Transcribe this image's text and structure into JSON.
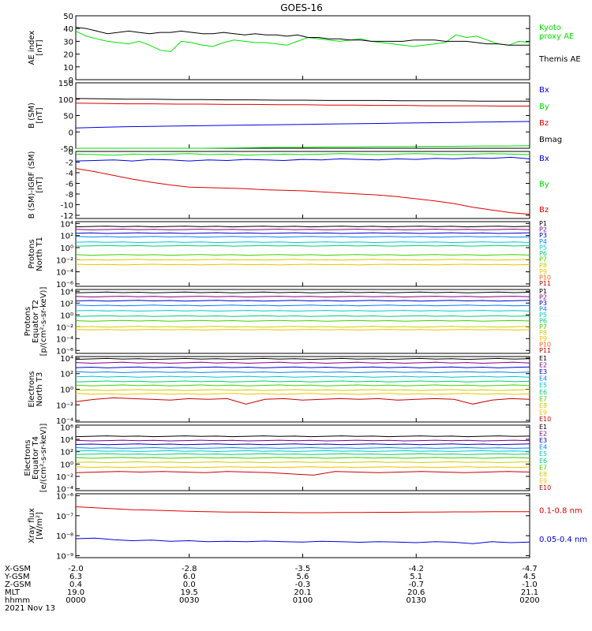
{
  "title": "GOES-16",
  "colors": {
    "black": "#000000",
    "green": "#00e000",
    "red": "#e00000",
    "blue": "#0000e0",
    "P1": "#000000",
    "P2": "#7f007f",
    "P3": "#0000c8",
    "P4": "#0080ff",
    "P5": "#00c8c8",
    "P6": "#00d070",
    "P7": "#40d000",
    "P8": "#c8d000",
    "P9": "#f0c000",
    "P10": "#ff6000",
    "P11": "#c80000"
  },
  "chart_data": [
    {
      "type": "line",
      "id": "ae",
      "ylabel": "AE index\n[nT]",
      "ylim": [
        0,
        50
      ],
      "yticks": [
        "0",
        "10",
        "20",
        "30",
        "40",
        "50"
      ],
      "yvals": [
        0,
        10,
        20,
        30,
        40,
        50
      ],
      "series": [
        {
          "name": "Kyoto\nproxy AE",
          "color": "green",
          "values": [
            38,
            34,
            32,
            30,
            29,
            28,
            30,
            27,
            23,
            22,
            30,
            29,
            27,
            26,
            29,
            31,
            30,
            29,
            29,
            28,
            27,
            30,
            33,
            32,
            31,
            30,
            31,
            32,
            30,
            29,
            28,
            27,
            26,
            27,
            28,
            29,
            35,
            33,
            34,
            31,
            28,
            27,
            30,
            29
          ]
        },
        {
          "name": "Themis AE",
          "color": "black",
          "values": [
            41,
            40,
            38,
            36,
            37,
            38,
            37,
            36,
            37,
            37,
            38,
            37,
            36,
            36,
            37,
            36,
            35,
            36,
            35,
            35,
            34,
            35,
            33,
            33,
            32,
            32,
            31,
            31,
            30,
            30,
            30,
            30,
            31,
            31,
            31,
            30,
            30,
            30,
            29,
            28,
            28,
            27,
            27,
            27
          ]
        }
      ]
    },
    {
      "type": "line",
      "id": "bsm",
      "ylabel": "B (SM)\n[nT]",
      "ylim": [
        -50,
        150
      ],
      "yticks": [
        "-50",
        "0",
        "50",
        "100",
        "150"
      ],
      "yvals": [
        -50,
        0,
        50,
        100,
        150
      ],
      "series": [
        {
          "name": "Bx",
          "color": "blue",
          "values": [
            12,
            14,
            16,
            17,
            18,
            19,
            20,
            21,
            22,
            23,
            24,
            25,
            26,
            27,
            28,
            29,
            30,
            31,
            32
          ]
        },
        {
          "name": "By",
          "color": "green",
          "values": [
            -55,
            -54,
            -53,
            -52,
            -51,
            -50,
            -49,
            -48,
            -47,
            -47,
            -46,
            -46,
            -45,
            -45,
            -44,
            -44,
            -43,
            -43,
            -42
          ]
        },
        {
          "name": "Bz",
          "color": "red",
          "values": [
            88,
            87,
            86,
            86,
            85,
            85,
            84,
            84,
            83,
            83,
            82,
            82,
            81,
            81,
            80,
            80,
            80,
            79,
            79
          ]
        },
        {
          "name": "Bmag",
          "color": "black",
          "values": [
            102,
            101,
            100,
            100,
            99,
            99,
            98,
            98,
            97,
            97,
            96,
            96,
            96,
            95,
            95,
            95,
            94,
            94,
            94
          ]
        }
      ]
    },
    {
      "type": "line",
      "id": "bdiff",
      "ylabel": "B (SM)-IGRF (SM)\n[nT]",
      "ylim": [
        -12.6,
        0
      ],
      "yticks": [
        "-12",
        "-10",
        "-8",
        "-6",
        "-4",
        "-2",
        "0"
      ],
      "yvals": [
        -12,
        -10,
        -8,
        -6,
        -4,
        -2,
        0
      ],
      "series": [
        {
          "name": "Bx",
          "color": "blue",
          "values": [
            -1.8,
            -1.7,
            -1.6,
            -1.8,
            -1.5,
            -1.6,
            -1.8,
            -1.6,
            -1.7,
            -1.5,
            -1.6,
            -1.7,
            -1.5,
            -1.6,
            -1.4,
            -1.5,
            -1.6,
            -1.4,
            -1.5,
            -1.3,
            -1.4,
            -1.2,
            -1.3,
            -1.1,
            -1.4
          ]
        },
        {
          "name": "By",
          "color": "green",
          "values": [
            -0.5,
            -0.6,
            -0.7,
            -0.5,
            -0.6,
            -0.5,
            -0.4,
            -0.6,
            -0.5,
            -0.7,
            -0.6,
            -0.5,
            -0.6,
            -0.5,
            -0.4,
            -0.5,
            -0.6,
            -0.5,
            -0.4,
            -0.5,
            -0.6,
            -0.5,
            -0.4,
            -0.5,
            -0.6
          ]
        },
        {
          "name": "Bz",
          "color": "red",
          "values": [
            -3.2,
            -3.8,
            -4.5,
            -5.2,
            -5.8,
            -6.3,
            -6.7,
            -6.8,
            -6.9,
            -7.0,
            -7.2,
            -7.3,
            -7.4,
            -7.6,
            -7.8,
            -8.0,
            -8.2,
            -8.5,
            -8.9,
            -9.3,
            -9.8,
            -10.5,
            -11.0,
            -11.5,
            -11.8
          ]
        }
      ]
    },
    {
      "type": "line",
      "id": "pnt1",
      "ylabel": "Protons\nNorth T1",
      "yscale": "log",
      "ylim": [
        -6.4,
        4.3
      ],
      "yticks": [
        "10⁻⁶",
        "10⁻⁴",
        "10⁻²",
        "10⁰",
        "10²",
        "10⁴"
      ],
      "yvals": [
        -6,
        -4,
        -2,
        0,
        2,
        4
      ],
      "series": [
        {
          "name": "P1",
          "color": "P1",
          "level": 3.5
        },
        {
          "name": "P2",
          "color": "P2",
          "level": 3.0
        },
        {
          "name": "P3",
          "color": "P3",
          "level": 2.4
        },
        {
          "name": "P4",
          "color": "P4",
          "level": 1.8
        },
        {
          "name": "P5",
          "color": "P5",
          "level": 0.9
        },
        {
          "name": "P6",
          "color": "P6",
          "level": 0.3
        },
        {
          "name": "P7",
          "color": "P7",
          "level": -1.2
        },
        {
          "name": "P8",
          "color": "P8",
          "level": -2.0
        },
        {
          "name": "P9",
          "color": "P9",
          "level": -2.8
        },
        {
          "name": "P10",
          "color": "P10",
          "level": null
        },
        {
          "name": "P11",
          "color": "P11",
          "level": null
        }
      ]
    },
    {
      "type": "line",
      "id": "pet2",
      "ylabel": "Protons\nEquator T2\n[p/(cm²-s-sr-keV)]",
      "yscale": "log",
      "ylim": [
        -6.5,
        4.3
      ],
      "yticks": [
        "10⁻⁶",
        "10⁻⁴",
        "10⁻²",
        "10⁰",
        "10²",
        "10⁴"
      ],
      "yvals": [
        -6,
        -4,
        -2,
        0,
        2,
        4
      ],
      "series": [
        {
          "name": "P1",
          "color": "P1",
          "level": 3.8
        },
        {
          "name": "P2",
          "color": "P2",
          "level": 3.1
        },
        {
          "name": "P3",
          "color": "P3",
          "level": 2.4
        },
        {
          "name": "P4",
          "color": "P4",
          "level": 1.6
        },
        {
          "name": "P5",
          "color": "P5",
          "level": 0.7
        },
        {
          "name": "P6",
          "color": "P6",
          "level": -0.2
        },
        {
          "name": "P7",
          "color": "P7",
          "level": -1.0
        },
        {
          "name": "P8",
          "color": "P8",
          "level": -2.0
        },
        {
          "name": "P9",
          "color": "P9",
          "level": -2.5
        },
        {
          "name": "P10",
          "color": "P10",
          "level": null
        },
        {
          "name": "P11",
          "color": "P11",
          "level": null
        }
      ]
    },
    {
      "type": "line",
      "id": "ent3",
      "ylabel": "Electrons\nNorth T3",
      "yscale": "log",
      "ylim": [
        -4.2,
        4.2
      ],
      "yticks": [
        "10⁻⁴",
        "10⁻²",
        "10⁰",
        "10²",
        "10⁴"
      ],
      "yvals": [
        -4,
        -2,
        0,
        2,
        4
      ],
      "series": [
        {
          "name": "E1",
          "color": "P1",
          "level": 3.9
        },
        {
          "name": "E2",
          "color": "P2",
          "level": 3.4
        },
        {
          "name": "E3",
          "color": "P3",
          "level": 2.8
        },
        {
          "name": "E4",
          "color": "P4",
          "level": 2.2
        },
        {
          "name": "E5",
          "color": "P5",
          "level": 1.6
        },
        {
          "name": "E6",
          "color": "P6",
          "level": 1.0
        },
        {
          "name": "E7",
          "color": "P7",
          "level": 0.5
        },
        {
          "name": "E8",
          "color": "P8",
          "level": -0.1
        },
        {
          "name": "E9",
          "color": "P9",
          "level": -0.6
        },
        {
          "name": "E10",
          "color": "P11",
          "level": -1.3,
          "values": [
            -1.6,
            -1.3,
            -1.1,
            -1.2,
            -1.3,
            -1.4,
            -1.2,
            -1.3,
            -1.2,
            -1.9,
            -1.3,
            -1.2,
            -1.4,
            -1.3,
            -1.2,
            -1.3,
            -1.2,
            -1.4,
            -1.3,
            -1.2,
            -1.3,
            -1.9,
            -1.4,
            -1.2,
            -1.3
          ]
        }
      ]
    },
    {
      "type": "line",
      "id": "eet4",
      "ylabel": "Electrons\nEquator T4\n[e/(cm²-s-sr-keV)]",
      "yscale": "log",
      "ylim": [
        -4.3,
        6.3
      ],
      "yticks": [
        "10⁻⁴",
        "10⁻²",
        "10⁰",
        "10²",
        "10⁴",
        "10⁶"
      ],
      "yvals": [
        -4,
        -2,
        0,
        2,
        4,
        6
      ],
      "series": [
        {
          "name": "E1",
          "color": "P1",
          "level": 4.5
        },
        {
          "name": "E2",
          "color": "P2",
          "level": 3.8
        },
        {
          "name": "E3",
          "color": "P3",
          "level": 3.2
        },
        {
          "name": "E4",
          "color": "P4",
          "level": 2.6
        },
        {
          "name": "E5",
          "color": "P5",
          "level": 2.1
        },
        {
          "name": "E6",
          "color": "P6",
          "level": 1.6
        },
        {
          "name": "E7",
          "color": "P7",
          "level": 1.0
        },
        {
          "name": "E8",
          "color": "P8",
          "level": 0.3
        },
        {
          "name": "E9",
          "color": "P9",
          "level": -0.5
        },
        {
          "name": "E10",
          "color": "P11",
          "level": -1.3,
          "values": [
            -1.4,
            -1.3,
            -1.2,
            -1.3,
            -1.2,
            -1.3,
            -1.4,
            -1.2,
            -1.3,
            -1.4,
            -1.6,
            -1.8,
            -1.2,
            -1.3,
            -1.4,
            -1.3,
            -1.2,
            -1.3,
            -1.4,
            -1.3,
            -1.2,
            -1.3
          ]
        }
      ]
    },
    {
      "type": "line",
      "id": "xray",
      "ylabel": "Xray flux\n[W/m²]",
      "yscale": "log",
      "ylim": [
        -9.1,
        -5.9
      ],
      "yticks": [
        "10⁻⁹",
        "10⁻⁸",
        "10⁻⁷",
        "10⁻⁶"
      ],
      "yvals": [
        -9,
        -8,
        -7,
        -6
      ],
      "series": [
        {
          "name": "0.1-0.8 nm",
          "color": "red",
          "values": [
            -6.55,
            -6.6,
            -6.65,
            -6.7,
            -6.72,
            -6.75,
            -6.78,
            -6.8,
            -6.82,
            -6.82,
            -6.83,
            -6.84,
            -6.85,
            -6.85,
            -6.84,
            -6.84,
            -6.83,
            -6.83,
            -6.82,
            -6.82,
            -6.81,
            -6.81,
            -6.8,
            -6.8,
            -6.8
          ]
        },
        {
          "name": "0.05-0.4 nm",
          "color": "blue",
          "values": [
            -8.15,
            -8.12,
            -8.2,
            -8.25,
            -8.22,
            -8.28,
            -8.25,
            -8.3,
            -8.28,
            -8.3,
            -8.27,
            -8.3,
            -8.32,
            -8.28,
            -8.3,
            -8.33,
            -8.3,
            -8.32,
            -8.35,
            -8.3,
            -8.33,
            -8.4,
            -8.3,
            -8.35,
            -8.32
          ]
        }
      ]
    }
  ],
  "xaxis": {
    "labels": [
      "X-GSM",
      "Y-GSM",
      "Z-GSM",
      "MLT",
      "hhmm",
      "2021 Nov 13"
    ],
    "ticks": [
      {
        "values": [
          "-2.0",
          "6.3",
          "0.4",
          "19.0",
          "0000"
        ]
      },
      {
        "values": [
          "-2.8",
          "6.0",
          "0.0",
          "19.5",
          "0030"
        ]
      },
      {
        "values": [
          "-3.5",
          "5.6",
          "-0.3",
          "20.1",
          "0100"
        ]
      },
      {
        "values": [
          "-4.2",
          "5.1",
          "-0.7",
          "20.6",
          "0130"
        ]
      },
      {
        "values": [
          "-4.7",
          "4.5",
          "-1.0",
          "21.1",
          "0200"
        ]
      }
    ]
  }
}
